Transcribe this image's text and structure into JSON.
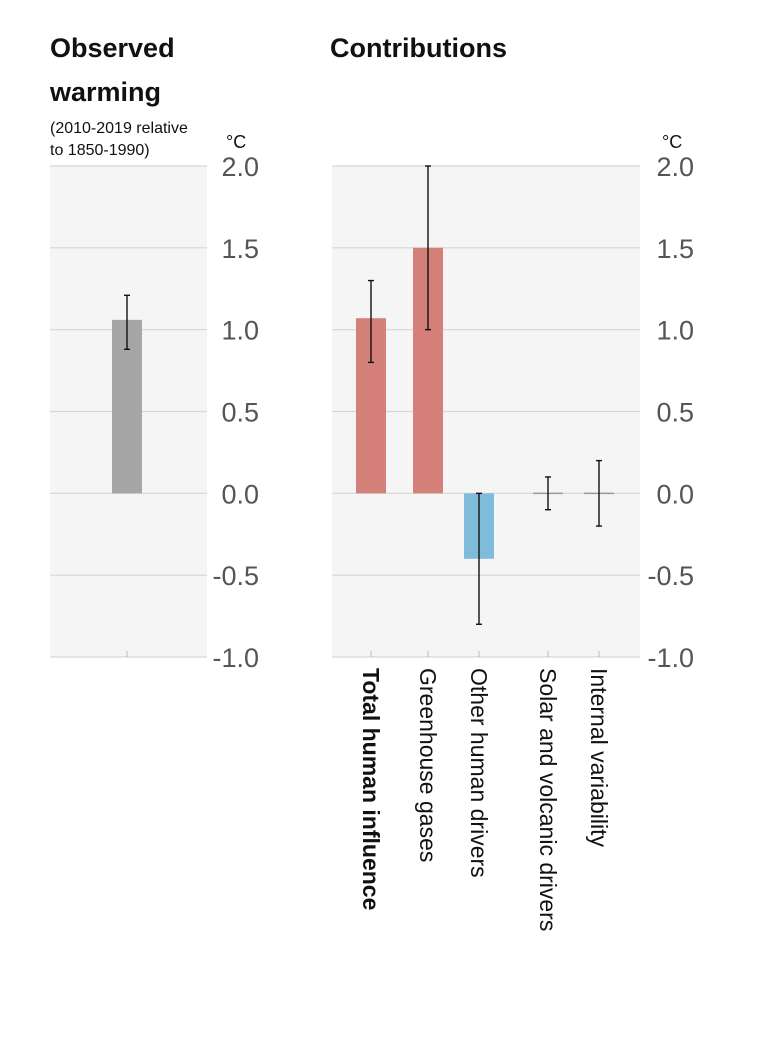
{
  "left_panel": {
    "title_lines": [
      "Observed",
      "warming"
    ],
    "subtitle_lines": [
      "(2010-2019 relative",
      "to 1850-1990)"
    ],
    "unit": "°C"
  },
  "right_panel": {
    "title": "Contributions",
    "unit": "°C"
  },
  "colors": {
    "panel_bg": "#f4f5f4",
    "grid": "#d6d6d6",
    "observed_bar": "#a6a6a6",
    "warming_bar": "#d47f78",
    "cooling_bar": "#7fbcd9",
    "error_bar": "#111111",
    "tick_text": "#555555"
  },
  "chart_data": [
    {
      "type": "bar",
      "title": "Observed warming",
      "subtitle": "(2010-2019 relative to 1850-1990)",
      "ylabel": "°C",
      "ylim": [
        -1.0,
        2.0
      ],
      "yticks": [
        "2.0",
        "1.5",
        "1.0",
        "0.5",
        "0.0",
        "-0.5",
        "-1.0"
      ],
      "grid": true,
      "categories": [
        ""
      ],
      "values": [
        1.06
      ],
      "error_low": [
        0.88
      ],
      "error_high": [
        1.21
      ]
    },
    {
      "type": "bar",
      "title": "Contributions",
      "ylabel": "°C",
      "ylim": [
        -1.0,
        2.0
      ],
      "yticks": [
        "2.0",
        "1.5",
        "1.0",
        "0.5",
        "0.0",
        "-0.5",
        "-1.0"
      ],
      "grid": true,
      "categories": [
        "Total human influence",
        "Greenhouse gases",
        "Other human drivers",
        "Solar and volcanic drivers",
        "Internal variability"
      ],
      "values": [
        1.07,
        1.5,
        -0.4,
        0.0,
        0.0
      ],
      "error_low": [
        0.8,
        1.0,
        -0.8,
        -0.1,
        -0.2
      ],
      "error_high": [
        1.3,
        2.0,
        0.0,
        0.1,
        0.2
      ]
    }
  ]
}
